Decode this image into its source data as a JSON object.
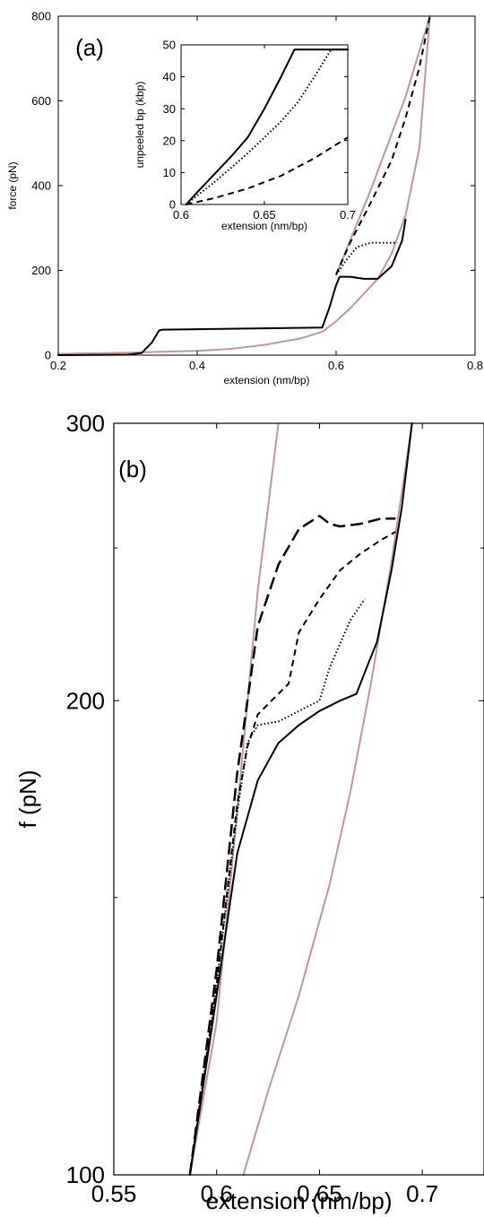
{
  "colors": {
    "pink": "#c59595",
    "black": "#000000"
  },
  "chart_data": [
    {
      "panel": "(a)",
      "type": "line",
      "xlabel": "extension (nm/bp)",
      "ylabel": "force (pN)",
      "xlim": [
        0.2,
        0.8
      ],
      "ylim": [
        0,
        800
      ],
      "xticks": [
        "0.2",
        "0.4",
        "0.6",
        "0.8"
      ],
      "yticks": [
        "0",
        "200",
        "400",
        "600",
        "800"
      ],
      "series": [
        {
          "style": "pink-solid",
          "points": [
            [
              0.2,
              3
            ],
            [
              0.3,
              6
            ],
            [
              0.4,
              10
            ],
            [
              0.45,
              15
            ],
            [
              0.5,
              25
            ],
            [
              0.55,
              40
            ],
            [
              0.58,
              55
            ],
            [
              0.6,
              80
            ],
            [
              0.62,
              110
            ],
            [
              0.64,
              145
            ],
            [
              0.66,
              180
            ],
            [
              0.68,
              240
            ],
            [
              0.7,
              330
            ],
            [
              0.72,
              490
            ],
            [
              0.735,
              800
            ]
          ]
        },
        {
          "style": "pink-solid",
          "points": [
            [
              0.6,
              190
            ],
            [
              0.65,
              390
            ],
            [
              0.7,
              610
            ],
            [
              0.735,
              800
            ]
          ]
        },
        {
          "style": "black-solid",
          "points": [
            [
              0.2,
              0
            ],
            [
              0.3,
              1
            ],
            [
              0.32,
              5
            ],
            [
              0.335,
              30
            ],
            [
              0.345,
              58
            ],
            [
              0.35,
              60
            ],
            [
              0.58,
              65
            ],
            [
              0.59,
              110
            ],
            [
              0.6,
              165
            ],
            [
              0.605,
              185
            ],
            [
              0.62,
              185
            ],
            [
              0.64,
              180
            ],
            [
              0.66,
              180
            ],
            [
              0.68,
              210
            ],
            [
              0.695,
              270
            ],
            [
              0.7,
              320
            ]
          ]
        },
        {
          "style": "black-dotted",
          "points": [
            [
              0.6,
              190
            ],
            [
              0.615,
              225
            ],
            [
              0.63,
              255
            ],
            [
              0.65,
              265
            ],
            [
              0.675,
              265
            ],
            [
              0.688,
              265
            ]
          ]
        },
        {
          "style": "black-dashed",
          "points": [
            [
              0.6,
              190
            ],
            [
              0.62,
              265
            ],
            [
              0.65,
              360
            ],
            [
              0.68,
              460
            ],
            [
              0.7,
              560
            ],
            [
              0.72,
              680
            ],
            [
              0.735,
              800
            ]
          ]
        }
      ]
    },
    {
      "panel": "inset",
      "type": "line",
      "xlabel": "extension (nm/bp)",
      "ylabel": "unpeeled bp (kbp)",
      "xlim": [
        0.6,
        0.7
      ],
      "ylim": [
        0,
        50
      ],
      "xticks": [
        "0.6",
        "0.65",
        "0.7"
      ],
      "yticks": [
        "0",
        "10",
        "20",
        "30",
        "40",
        "50"
      ],
      "series": [
        {
          "style": "black-solid",
          "points": [
            [
              0.603,
              0
            ],
            [
              0.61,
              4
            ],
            [
              0.62,
              9.5
            ],
            [
              0.63,
              15
            ],
            [
              0.64,
              21
            ],
            [
              0.65,
              30
            ],
            [
              0.66,
              40
            ],
            [
              0.668,
              48.5
            ],
            [
              0.7,
              48.5
            ]
          ]
        },
        {
          "style": "black-dotted",
          "points": [
            [
              0.603,
              0
            ],
            [
              0.62,
              7
            ],
            [
              0.64,
              16
            ],
            [
              0.66,
              26
            ],
            [
              0.67,
              32
            ],
            [
              0.68,
              40
            ],
            [
              0.69,
              48.5
            ],
            [
              0.7,
              48.5
            ]
          ]
        },
        {
          "style": "black-dashed",
          "points": [
            [
              0.603,
              0
            ],
            [
              0.62,
              2
            ],
            [
              0.64,
              5
            ],
            [
              0.66,
              9
            ],
            [
              0.68,
              14.5
            ],
            [
              0.7,
              21
            ]
          ]
        }
      ]
    },
    {
      "panel": "(b)",
      "type": "line",
      "xlabel": "extension (nm/bp)",
      "ylabel": "f (pN)",
      "xlim": [
        0.55,
        0.73
      ],
      "ylim": [
        100,
        300
      ],
      "log_y": true,
      "xticks": [
        "0.55",
        "0.6",
        "0.65",
        "0.7"
      ],
      "yticks": [
        "100",
        "200",
        "300"
      ],
      "series": [
        {
          "style": "pink-solid",
          "points": [
            [
              0.587,
              100
            ],
            [
              0.6,
              125
            ],
            [
              0.61,
              170
            ],
            [
              0.62,
              235
            ],
            [
              0.63,
              300
            ]
          ]
        },
        {
          "style": "pink-solid",
          "points": [
            [
              0.613,
              100
            ],
            [
              0.625,
              113
            ],
            [
              0.64,
              130
            ],
            [
              0.655,
              153
            ],
            [
              0.665,
              175
            ],
            [
              0.675,
              205
            ],
            [
              0.685,
              245
            ],
            [
              0.695,
              300
            ]
          ]
        },
        {
          "style": "black-solid",
          "points": [
            [
              0.587,
              100
            ],
            [
              0.6,
              130
            ],
            [
              0.61,
              160
            ],
            [
              0.62,
              178
            ],
            [
              0.63,
              188
            ],
            [
              0.64,
              193
            ],
            [
              0.65,
              197
            ],
            [
              0.66,
              200
            ],
            [
              0.668,
              202
            ],
            [
              0.673,
              210
            ],
            [
              0.678,
              218
            ],
            [
              0.685,
              242
            ],
            [
              0.69,
              265
            ],
            [
              0.695,
              300
            ]
          ]
        },
        {
          "style": "black-dotted",
          "points": [
            [
              0.587,
              100
            ],
            [
              0.6,
              132
            ],
            [
              0.61,
              170
            ],
            [
              0.615,
              188
            ],
            [
              0.62,
              193
            ],
            [
              0.63,
              194
            ],
            [
              0.64,
              197
            ],
            [
              0.65,
              200
            ],
            [
              0.655,
              210
            ],
            [
              0.665,
              225
            ],
            [
              0.672,
              232
            ]
          ]
        },
        {
          "style": "black-dashed",
          "points": [
            [
              0.587,
              100
            ],
            [
              0.6,
              132
            ],
            [
              0.61,
              172
            ],
            [
              0.615,
              187
            ],
            [
              0.62,
              196
            ],
            [
              0.63,
              202
            ],
            [
              0.635,
              205
            ],
            [
              0.64,
              221
            ],
            [
              0.65,
              232
            ],
            [
              0.66,
              242
            ],
            [
              0.67,
              248
            ],
            [
              0.68,
              253
            ],
            [
              0.687,
              256
            ]
          ]
        },
        {
          "style": "black-longdash",
          "points": [
            [
              0.587,
              100
            ],
            [
              0.6,
              135
            ],
            [
              0.61,
              180
            ],
            [
              0.615,
              200
            ],
            [
              0.62,
              223
            ],
            [
              0.63,
              244
            ],
            [
              0.64,
              257
            ],
            [
              0.65,
              262
            ],
            [
              0.655,
              259
            ],
            [
              0.66,
              258
            ],
            [
              0.67,
              259
            ],
            [
              0.68,
              261
            ],
            [
              0.687,
              261
            ]
          ]
        }
      ]
    }
  ]
}
